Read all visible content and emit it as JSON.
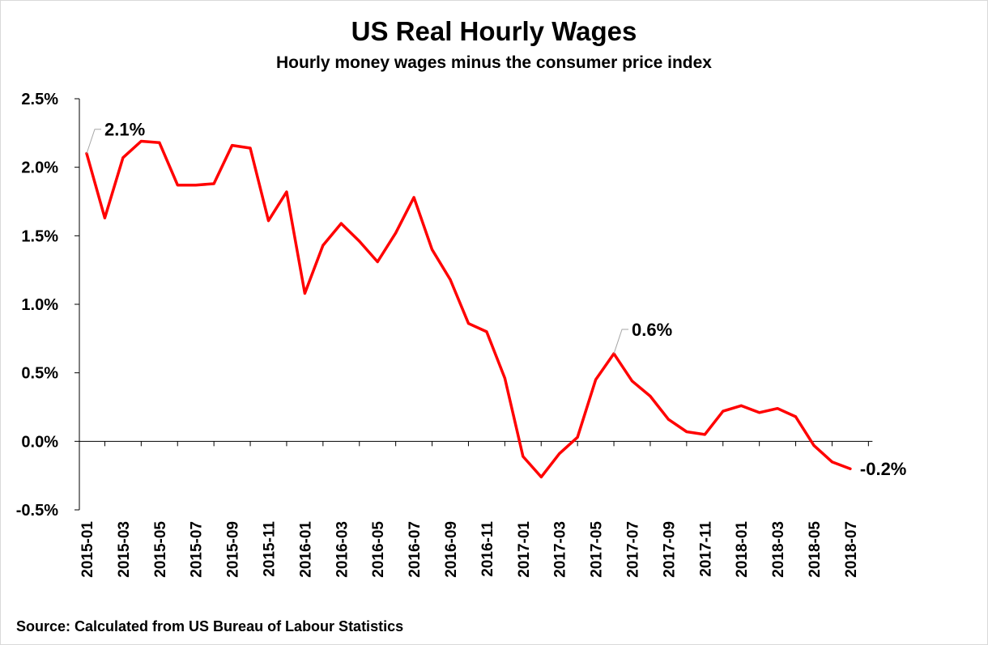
{
  "chart_data": {
    "type": "line",
    "title": "US Real Hourly Wages",
    "subtitle": "Hourly money wages minus the consumer price index",
    "xlabel": "",
    "ylabel": "",
    "source": "Source: Calculated from US Bureau of Labour Statistics",
    "ylim": [
      -0.5,
      2.5
    ],
    "yticks": [
      -0.5,
      0.0,
      0.5,
      1.0,
      1.5,
      2.0,
      2.5
    ],
    "ytick_labels": [
      "-0.5%",
      "0.0%",
      "0.5%",
      "1.0%",
      "1.5%",
      "2.0%",
      "2.5%"
    ],
    "x": [
      "2015-01",
      "2015-02",
      "2015-03",
      "2015-04",
      "2015-05",
      "2015-06",
      "2015-07",
      "2015-08",
      "2015-09",
      "2015-10",
      "2015-11",
      "2015-12",
      "2016-01",
      "2016-02",
      "2016-03",
      "2016-04",
      "2016-05",
      "2016-06",
      "2016-07",
      "2016-08",
      "2016-09",
      "2016-10",
      "2016-11",
      "2016-12",
      "2017-01",
      "2017-02",
      "2017-03",
      "2017-04",
      "2017-05",
      "2017-06",
      "2017-07",
      "2017-08",
      "2017-09",
      "2017-10",
      "2017-11",
      "2017-12",
      "2018-01",
      "2018-02",
      "2018-03",
      "2018-04",
      "2018-05",
      "2018-06",
      "2018-07"
    ],
    "xtick_labels": [
      "2015-01",
      "2015-03",
      "2015-05",
      "2015-07",
      "2015-09",
      "2015-11",
      "2016-01",
      "2016-03",
      "2016-05",
      "2016-07",
      "2016-09",
      "2016-11",
      "2017-01",
      "2017-03",
      "2017-05",
      "2017-07",
      "2017-09",
      "2017-11",
      "2018-01",
      "2018-03",
      "2018-05",
      "2018-07"
    ],
    "series": [
      {
        "color": "#ff0000",
        "values": [
          2.1,
          1.63,
          2.07,
          2.19,
          2.18,
          1.87,
          1.87,
          1.88,
          2.16,
          2.14,
          1.61,
          1.82,
          1.08,
          1.43,
          1.59,
          1.46,
          1.31,
          1.52,
          1.78,
          1.4,
          1.18,
          0.86,
          0.8,
          0.46,
          -0.11,
          -0.26,
          -0.09,
          0.03,
          0.45,
          0.64,
          0.44,
          0.33,
          0.16,
          0.07,
          0.05,
          0.22,
          0.26,
          0.21,
          0.24,
          0.18,
          -0.03,
          -0.15,
          -0.2
        ]
      }
    ],
    "annotations": [
      {
        "x": "2015-01",
        "text": "2.1%",
        "leader": true
      },
      {
        "x": "2017-06",
        "text": "0.6%",
        "leader": true
      },
      {
        "x": "2018-07",
        "text": "-0.2%",
        "leader": false
      }
    ],
    "grid": false,
    "legend": "none"
  }
}
